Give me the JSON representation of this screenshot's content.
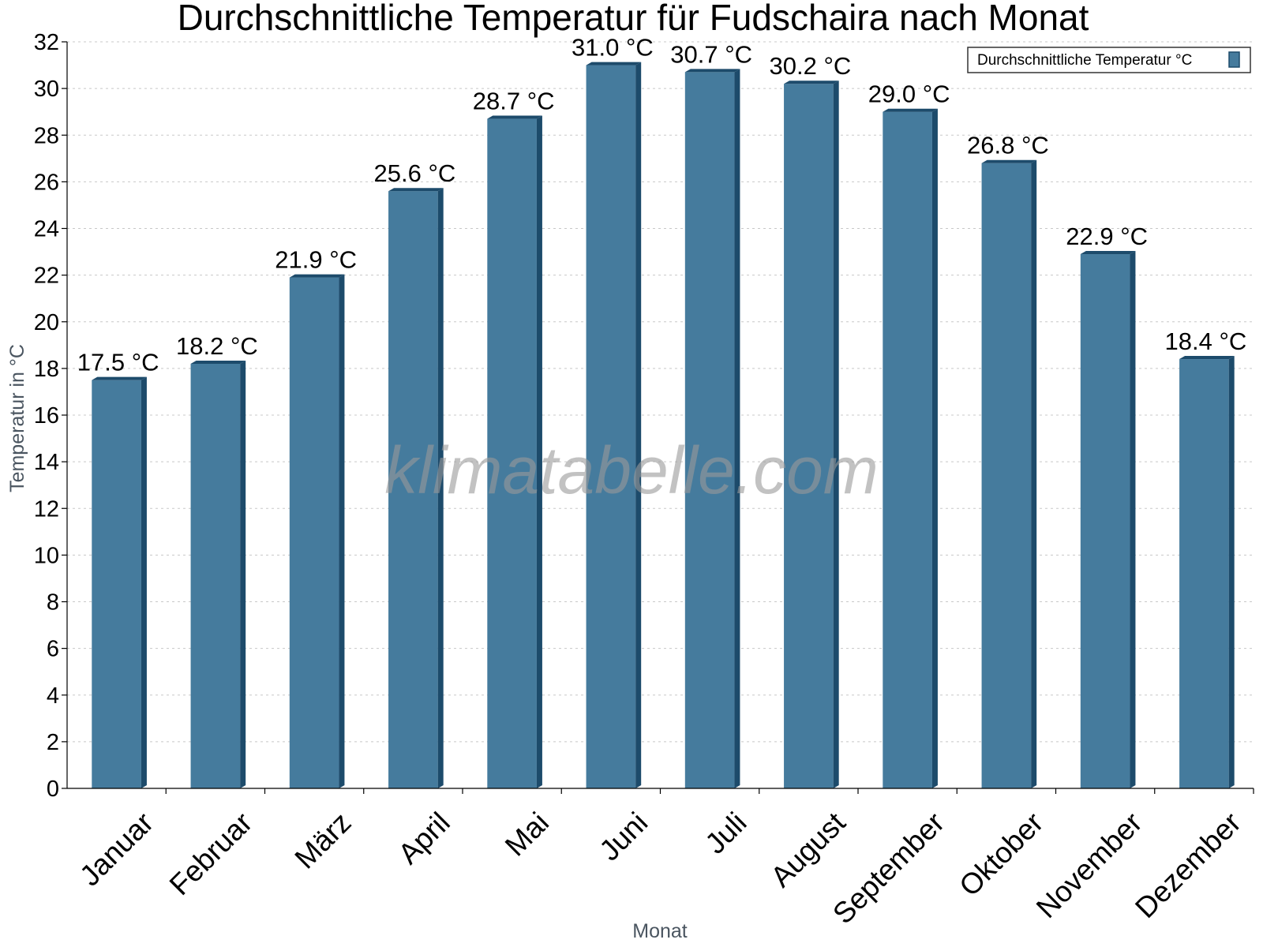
{
  "chart_data": {
    "type": "bar",
    "title": "Durchschnittliche Temperatur für Fudschaira nach Monat",
    "xlabel": "Monat",
    "ylabel": "Temperatur in °C",
    "ylim": [
      0,
      32
    ],
    "yticks": [
      "0",
      "2",
      "4",
      "6",
      "8",
      "10",
      "12",
      "14",
      "16",
      "18",
      "20",
      "22",
      "24",
      "26",
      "28",
      "30",
      "32"
    ],
    "grid": true,
    "legend_position": "top-right",
    "categories": [
      "Januar",
      "Februar",
      "März",
      "April",
      "Mai",
      "Juni",
      "Juli",
      "August",
      "September",
      "Oktober",
      "November",
      "Dezember"
    ],
    "series": [
      {
        "name": "Durchschnittliche Temperatur °C",
        "values": [
          17.5,
          18.2,
          21.9,
          25.6,
          28.7,
          31.0,
          30.7,
          30.2,
          29.0,
          26.8,
          22.9,
          18.4
        ],
        "labels": [
          "17.5 °C",
          "18.2 °C",
          "21.9 °C",
          "25.6 °C",
          "28.7 °C",
          "31.0 °C",
          "30.7 °C",
          "30.2 °C",
          "29.0 °C",
          "26.8 °C",
          "22.9 °C",
          "18.4 °C"
        ]
      }
    ],
    "colors": {
      "bar": "#457b9d",
      "bar_side": "#1d4b6b",
      "grid": "#c8c8c8"
    },
    "watermark": "klimatabelle.com"
  }
}
